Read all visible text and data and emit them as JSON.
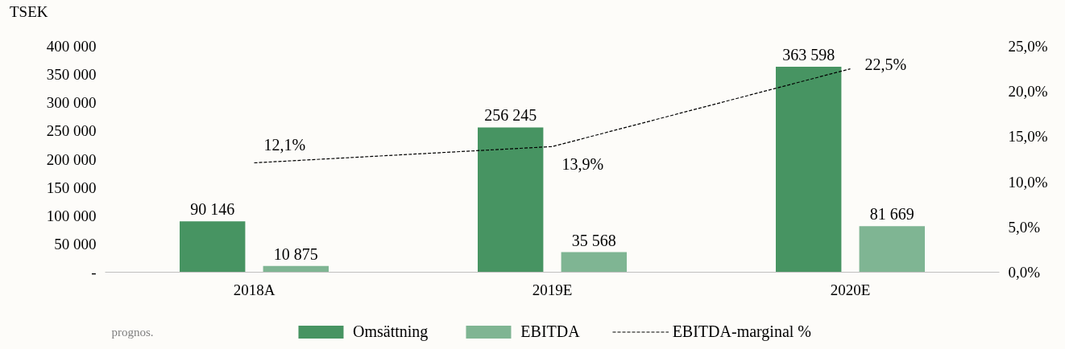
{
  "chart_data": {
    "type": "bar",
    "ylabel": "TSEK",
    "categories": [
      "2018A",
      "2019E",
      "2020E"
    ],
    "series": [
      {
        "name": "Omsättning",
        "color": "#479462",
        "values": [
          90146,
          256245,
          363598
        ],
        "value_labels": [
          "90 146",
          "256 245",
          "363 598"
        ]
      },
      {
        "name": "EBITDA",
        "color": "#7fb593",
        "values": [
          10875,
          35568,
          81669
        ],
        "value_labels": [
          "10 875",
          "35 568",
          "81 669"
        ]
      },
      {
        "name": "EBITDA-marginal %",
        "type": "line",
        "axis": "y2",
        "color": "#000000",
        "line_style": "dashed",
        "marker": "none",
        "values": [
          12.1,
          13.9,
          22.5
        ],
        "value_labels": [
          "12,1%",
          "13,9%",
          "22,5%"
        ]
      }
    ],
    "ylim": [
      0,
      400000
    ],
    "yticks": [
      {
        "value": 0,
        "label": "-"
      },
      {
        "value": 50000,
        "label": "50 000"
      },
      {
        "value": 100000,
        "label": "100 000"
      },
      {
        "value": 150000,
        "label": "150 000"
      },
      {
        "value": 200000,
        "label": "200 000"
      },
      {
        "value": 250000,
        "label": "250 000"
      },
      {
        "value": 300000,
        "label": "300 000"
      },
      {
        "value": 350000,
        "label": "350 000"
      },
      {
        "value": 400000,
        "label": "400 000"
      }
    ],
    "y2lim": [
      0,
      25
    ],
    "y2ticks": [
      {
        "value": 0,
        "label": "0,0%"
      },
      {
        "value": 5,
        "label": "5,0%"
      },
      {
        "value": 10,
        "label": "10,0%"
      },
      {
        "value": 15,
        "label": "15,0%"
      },
      {
        "value": 20,
        "label": "20,0%"
      },
      {
        "value": 25,
        "label": "25,0%"
      }
    ],
    "grid": false,
    "legend": "bottom",
    "annotations": [
      "prognos."
    ]
  }
}
